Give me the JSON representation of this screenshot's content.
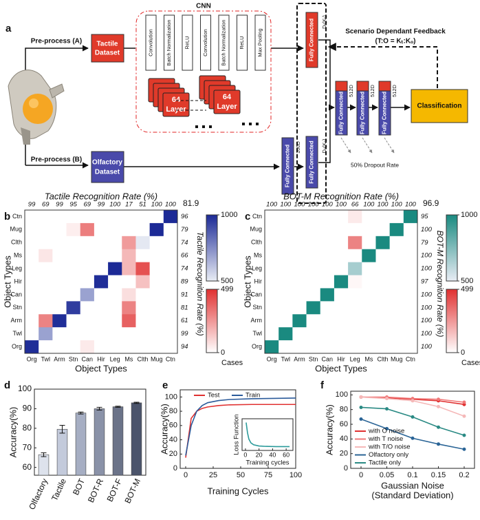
{
  "panel_labels": [
    "a",
    "b",
    "c",
    "d",
    "e",
    "f"
  ],
  "diagram": {
    "cnn_title": "CNN",
    "preprocess_a": "Pre-process (A)",
    "tactile_dataset": [
      "Tactile",
      "Dataset"
    ],
    "preprocess_b": "Pre-process (B)",
    "olfactory_dataset": [
      "Olfactory",
      "Dataset"
    ],
    "cnn_layers": [
      "Convolution",
      "Batch Normalization",
      "ReLU",
      "Convolution",
      "Batch Normalization",
      "ReLU",
      "Max Pooling"
    ],
    "layer_stacks": [
      [
        "64",
        "Layer"
      ],
      [
        "64",
        "Layer"
      ]
    ],
    "fully_connected": [
      "Fully Connected",
      "Fully Connected",
      "Fully Connected",
      "Fully Connected",
      "Fully Connected",
      "Fully Connected"
    ],
    "fc_dims": [
      "Dₜ(Kₜ)",
      "Dₒ(Kₒ)",
      "100D",
      "512D",
      "512D",
      "512D"
    ],
    "feedback": [
      "Scenario Dependant Feedback",
      "(T:O = Kₜ:Kₒ)"
    ],
    "classification": "Classification",
    "dropout": "50% Dropout Rate"
  },
  "chart_data": [
    {
      "type": "heatmap",
      "title": "Tactile Recognition Rate (%)",
      "overall": 81.9,
      "x_categories": [
        "Org",
        "Twl",
        "Arm",
        "Stn",
        "Can",
        "Hir",
        "Leg",
        "Ms",
        "Clth",
        "Mug",
        "Ctn"
      ],
      "y_categories": [
        "Ctn",
        "Mug",
        "Clth",
        "Ms",
        "Leg",
        "Hir",
        "Can",
        "Stn",
        "Arm",
        "Twl",
        "Org"
      ],
      "values": [
        [
          0,
          0,
          0,
          0,
          0,
          0,
          0,
          0,
          0,
          0,
          1000
        ],
        [
          0,
          0,
          0,
          40,
          310,
          0,
          0,
          0,
          0,
          1000,
          0
        ],
        [
          0,
          0,
          0,
          0,
          0,
          0,
          0,
          240,
          510,
          0,
          0
        ],
        [
          0,
          60,
          0,
          0,
          0,
          0,
          0,
          170,
          0,
          0,
          0
        ],
        [
          0,
          0,
          0,
          0,
          0,
          0,
          1000,
          170,
          420,
          0,
          0
        ],
        [
          0,
          0,
          0,
          0,
          0,
          990,
          0,
          0,
          150,
          0,
          0
        ],
        [
          0,
          0,
          0,
          0,
          690,
          0,
          0,
          80,
          0,
          0,
          0
        ],
        [
          0,
          0,
          0,
          950,
          0,
          0,
          0,
          300,
          0,
          0,
          0
        ],
        [
          0,
          300,
          990,
          0,
          0,
          0,
          0,
          380,
          0,
          0,
          0
        ],
        [
          0,
          690,
          0,
          0,
          0,
          0,
          0,
          0,
          0,
          0,
          0
        ],
        [
          990,
          0,
          0,
          0,
          50,
          0,
          0,
          0,
          0,
          0,
          0
        ]
      ],
      "column_rates": [
        99,
        69,
        99,
        95,
        69,
        99,
        100,
        17,
        51,
        100,
        100
      ],
      "row_rates": [
        96,
        79,
        74,
        66,
        74,
        89,
        91,
        81,
        61,
        99,
        94
      ],
      "rate_color": "#5a5ab8",
      "overall_color": "#e02020",
      "xlabel": "Object Types",
      "ylabel": "Object Types",
      "right_label": "Tactile Recognition Rate (%)",
      "colorbars": [
        {
          "color": "#1c2a96",
          "lim": [
            500,
            1000
          ],
          "ticks": [
            500,
            1000
          ]
        },
        {
          "color": "#e03030",
          "lim": [
            0,
            499
          ],
          "ticks": [
            0,
            499
          ]
        }
      ],
      "colorbar_label": "Cases"
    },
    {
      "type": "heatmap",
      "title": "BOT-M Recognition Rate (%)",
      "overall": 96.9,
      "x_categories": [
        "Org",
        "Twl",
        "Arm",
        "Stn",
        "Can",
        "Hir",
        "Leg",
        "Ms",
        "Clth",
        "Mug",
        "Ctn"
      ],
      "y_categories": [
        "Ctn",
        "Mug",
        "Clth",
        "Ms",
        "Leg",
        "Hir",
        "Can",
        "Stn",
        "Arm",
        "Twl",
        "Org"
      ],
      "values": [
        [
          0,
          0,
          0,
          0,
          0,
          0,
          50,
          0,
          0,
          0,
          1000
        ],
        [
          0,
          0,
          0,
          0,
          0,
          0,
          0,
          0,
          0,
          1000,
          0
        ],
        [
          0,
          0,
          0,
          0,
          0,
          0,
          300,
          0,
          1000,
          0,
          0
        ],
        [
          0,
          0,
          0,
          0,
          0,
          0,
          0,
          1000,
          0,
          0,
          0
        ],
        [
          0,
          0,
          0,
          0,
          0,
          0,
          660,
          0,
          0,
          0,
          0
        ],
        [
          0,
          0,
          0,
          0,
          0,
          1000,
          20,
          0,
          0,
          0,
          0
        ],
        [
          0,
          0,
          0,
          0,
          1000,
          0,
          0,
          0,
          0,
          0,
          0
        ],
        [
          0,
          0,
          0,
          1000,
          0,
          0,
          0,
          0,
          0,
          0,
          0
        ],
        [
          0,
          0,
          1000,
          0,
          0,
          0,
          0,
          0,
          0,
          0,
          0
        ],
        [
          0,
          1000,
          0,
          0,
          0,
          0,
          0,
          0,
          0,
          0,
          0
        ],
        [
          1000,
          0,
          0,
          0,
          0,
          0,
          0,
          0,
          0,
          0,
          0
        ]
      ],
      "column_rates": [
        100,
        100,
        100,
        100,
        100,
        100,
        66,
        100,
        100,
        100,
        100
      ],
      "row_rates": [
        95,
        100,
        79,
        100,
        100,
        97,
        100,
        100,
        100,
        100,
        100
      ],
      "rate_color": "#1a8a84",
      "overall_color": "#e02020",
      "xlabel": "Object Types",
      "ylabel": "Object Types",
      "right_label": "BOT-M Recognition Rate (%)",
      "colorbars": [
        {
          "color": "#1a8a80",
          "lim": [
            500,
            1000
          ],
          "ticks": [
            500,
            1000
          ]
        },
        {
          "color": "#e03030",
          "lim": [
            0,
            499
          ],
          "ticks": [
            0,
            499
          ]
        }
      ],
      "colorbar_label": "Cases"
    },
    {
      "type": "bar",
      "categories": [
        "Olfactory",
        "Tactile",
        "BOT",
        "BOT-R",
        "BOT-F",
        "BOT-M"
      ],
      "values": [
        66.5,
        79.5,
        87.8,
        90,
        91,
        93
      ],
      "errors": [
        1,
        2,
        0.5,
        0.7,
        0.3,
        0.3
      ],
      "colors": [
        "#dde2ec",
        "#c3cadb",
        "#a6aec3",
        "#8a92a8",
        "#6b7389",
        "#4b546b"
      ],
      "ylim": [
        56,
        100
      ],
      "yticks": [
        60,
        70,
        80,
        90,
        100
      ],
      "ylabel": "Accuracy(%)"
    },
    {
      "type": "line",
      "x": [
        0,
        5,
        10,
        15,
        20,
        30,
        40,
        60,
        80,
        100
      ],
      "series": [
        {
          "name": "Test",
          "color": "#e03030",
          "values": [
            15,
            70,
            80,
            84,
            86,
            88,
            89,
            89.5,
            89.5,
            89.5
          ]
        },
        {
          "name": "Train",
          "color": "#2a5a9a",
          "values": [
            18,
            60,
            80,
            88,
            92,
            95,
            96.5,
            97.5,
            98,
            98.5
          ]
        }
      ],
      "xlim": [
        -5,
        100
      ],
      "xticks": [
        0,
        25,
        50,
        75,
        100
      ],
      "ylim": [
        0,
        110
      ],
      "yticks": [
        0,
        20,
        40,
        60,
        80,
        100
      ],
      "xlabel": "Training Cycles",
      "ylabel": "Accuracy(%)",
      "legend": "top"
    },
    {
      "type": "line",
      "x": [
        1,
        3,
        5,
        8,
        12,
        20,
        30,
        45,
        65
      ],
      "series": [
        {
          "name": "Loss Function",
          "color": "#2a9a9a",
          "values": [
            22,
            14,
            9,
            6,
            4.5,
            3.5,
            3.2,
            3,
            3
          ]
        }
      ],
      "xlim": [
        -5,
        70
      ],
      "xticks": [
        0,
        20,
        40,
        60
      ],
      "ylim": [
        0,
        25
      ],
      "xlabel": "Training cycles",
      "ylabel": "Loss Function"
    },
    {
      "type": "line",
      "x": [
        0,
        0.05,
        0.1,
        0.15,
        0.2
      ],
      "series": [
        {
          "name": "with O noise",
          "color": "#e03030",
          "values": [
            97,
            96,
            94,
            92,
            87
          ]
        },
        {
          "name": "with T noise",
          "color": "#f07878",
          "values": [
            97,
            97,
            95,
            94,
            90
          ]
        },
        {
          "name": "with T/O noise",
          "color": "#f5b8b8",
          "values": [
            97,
            95,
            92,
            84,
            71
          ]
        },
        {
          "name": "Olfactory only",
          "color": "#2a6496",
          "values": [
            67,
            54,
            41,
            33,
            26
          ]
        },
        {
          "name": "Tactile only",
          "color": "#2a8a84",
          "values": [
            83,
            81,
            70,
            56,
            45
          ]
        }
      ],
      "xlim": [
        -0.02,
        0.22
      ],
      "xticks": [
        0,
        0.05,
        0.1,
        0.15,
        0.2
      ],
      "ylim": [
        0,
        105
      ],
      "yticks": [
        0,
        20,
        40,
        60,
        80,
        100
      ],
      "xlabel": [
        "Gaussian Noise",
        "(Standard Deviation)"
      ],
      "ylabel": "Accuracy(%)",
      "legend": "lower left",
      "markers": true
    }
  ]
}
